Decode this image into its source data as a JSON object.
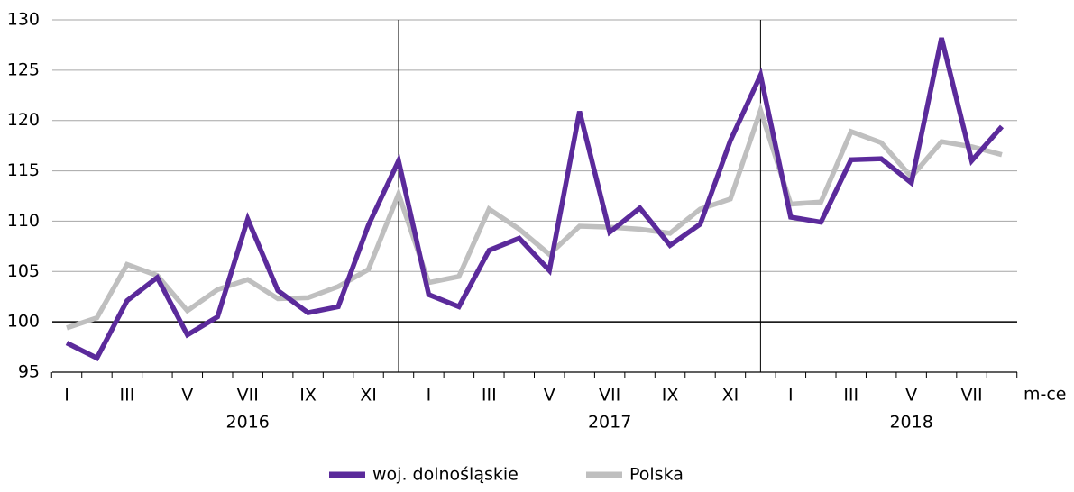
{
  "chart_data": {
    "type": "line",
    "categories": [
      "I",
      null,
      "III",
      null,
      "V",
      null,
      "VII",
      null,
      "IX",
      null,
      "XI",
      null,
      "I",
      null,
      "III",
      null,
      "V",
      null,
      "VII",
      null,
      "IX",
      null,
      "XI",
      null,
      "I",
      null,
      "III",
      null,
      "V",
      null,
      "VII",
      null
    ],
    "groups": [
      "2016",
      "2017",
      "2018"
    ],
    "x_label": "m-ce",
    "series": [
      {
        "name": "woj. dolnośląskie",
        "color": "#5b2a9b",
        "values": [
          97.9,
          96.4,
          102.1,
          104.4,
          98.7,
          100.5,
          110.2,
          103.1,
          100.9,
          101.5,
          109.6,
          116.0,
          102.7,
          101.5,
          107.1,
          108.3,
          105.1,
          120.9,
          108.9,
          111.3,
          107.6,
          109.7,
          118.0,
          124.5,
          110.4,
          109.9,
          116.1,
          116.2,
          113.8,
          128.2,
          116.0,
          119.4
        ]
      },
      {
        "name": "Polska",
        "color": "#bfbfbf",
        "values": [
          99.4,
          100.4,
          105.7,
          104.6,
          101.1,
          103.2,
          104.2,
          102.3,
          102.4,
          103.5,
          105.2,
          112.7,
          103.9,
          104.5,
          111.2,
          109.2,
          106.7,
          109.5,
          109.4,
          109.2,
          108.8,
          111.2,
          112.2,
          121.0,
          111.7,
          111.9,
          118.9,
          117.8,
          114.4,
          117.9,
          117.4,
          116.6
        ]
      }
    ],
    "ylim": [
      95,
      130
    ],
    "yticks": [
      95,
      100,
      105,
      110,
      115,
      120,
      125,
      130
    ],
    "reference_line": 100,
    "grid": true
  }
}
